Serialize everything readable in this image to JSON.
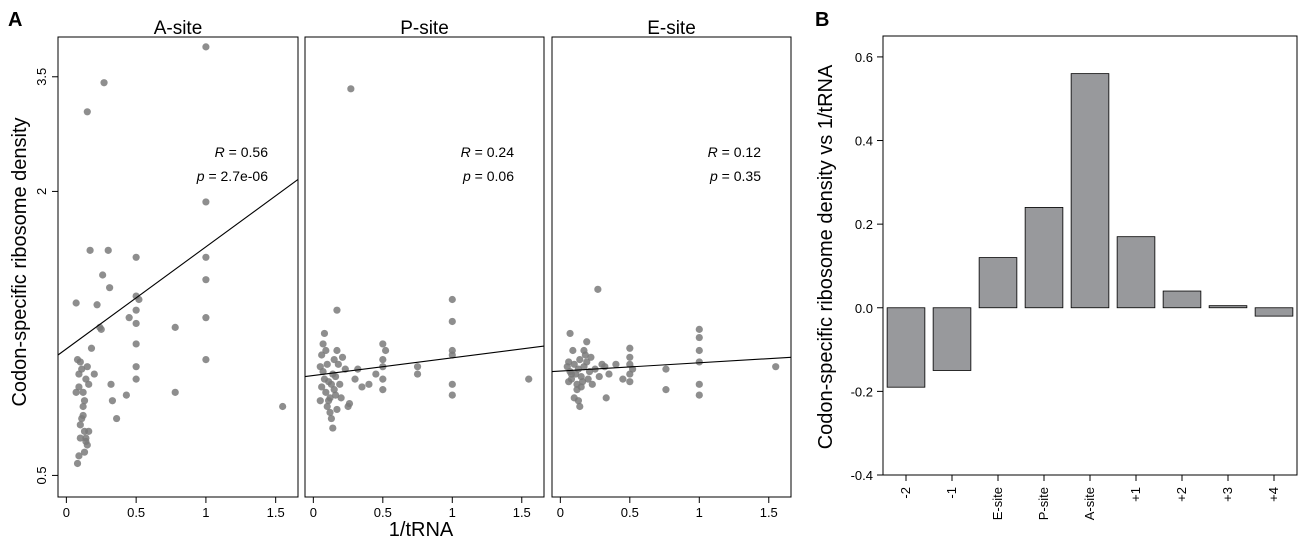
{
  "panel_a": {
    "letter": "A",
    "x_axis_title": "1/tRNA",
    "y_axis_title": "Codon-specific ribosome density"
  },
  "panel_b": {
    "letter": "B",
    "y_axis_title": "Codon-specific ribosome density vs 1/tRNA"
  },
  "chart_data": [
    {
      "type": "scatter",
      "title": "A-site",
      "xlabel": "1/tRNA",
      "ylabel": "Codon-specific ribosome density",
      "y_scale": "log",
      "x_ticks": [
        "0",
        "0.5",
        "1",
        "1.5"
      ],
      "x_tick_values": [
        0,
        0.5,
        1,
        1.5
      ],
      "y_ticks": [
        "0.5",
        "2",
        "3.5"
      ],
      "y_tick_values": [
        0.5,
        2,
        3.5
      ],
      "xlim": [
        -0.06,
        1.66
      ],
      "ylim": [
        0.45,
        4.25
      ],
      "annotations": {
        "R_label": "R",
        "R_value": "= 0.56",
        "p_label": "p",
        "p_value": "= 2.7e-06"
      },
      "fit": [
        [
          -0.06,
          0.9
        ],
        [
          1.66,
          2.12
        ]
      ],
      "points": [
        [
          0.07,
          1.16
        ],
        [
          0.08,
          0.88
        ],
        [
          0.09,
          0.82
        ],
        [
          0.1,
          0.87
        ],
        [
          0.11,
          0.84
        ],
        [
          0.12,
          0.75
        ],
        [
          0.12,
          0.67
        ],
        [
          0.13,
          0.62
        ],
        [
          0.13,
          0.56
        ],
        [
          0.14,
          0.6
        ],
        [
          0.08,
          0.53
        ],
        [
          0.09,
          0.55
        ],
        [
          0.1,
          0.6
        ],
        [
          0.11,
          0.66
        ],
        [
          0.12,
          0.7
        ],
        [
          0.13,
          0.72
        ],
        [
          0.14,
          0.8
        ],
        [
          0.15,
          0.85
        ],
        [
          0.16,
          0.78
        ],
        [
          0.07,
          0.75
        ],
        [
          0.09,
          0.77
        ],
        [
          0.1,
          0.64
        ],
        [
          0.14,
          0.59
        ],
        [
          0.15,
          0.58
        ],
        [
          0.16,
          0.62
        ],
        [
          0.17,
          1.5
        ],
        [
          0.18,
          0.93
        ],
        [
          0.2,
          0.82
        ],
        [
          0.22,
          1.15
        ],
        [
          0.24,
          1.03
        ],
        [
          0.25,
          1.02
        ],
        [
          0.26,
          1.33
        ],
        [
          0.3,
          1.5
        ],
        [
          0.31,
          1.25
        ],
        [
          0.32,
          0.78
        ],
        [
          0.33,
          0.72
        ],
        [
          0.36,
          0.66
        ],
        [
          0.43,
          0.74
        ],
        [
          0.45,
          1.08
        ],
        [
          0.5,
          1.45
        ],
        [
          0.5,
          1.2
        ],
        [
          0.5,
          1.12
        ],
        [
          0.5,
          1.05
        ],
        [
          0.5,
          0.95
        ],
        [
          0.5,
          0.85
        ],
        [
          0.5,
          0.8
        ],
        [
          0.52,
          1.18
        ],
        [
          0.78,
          1.03
        ],
        [
          0.78,
          0.75
        ],
        [
          1.0,
          1.9
        ],
        [
          1.0,
          1.45
        ],
        [
          1.0,
          1.3
        ],
        [
          1.0,
          1.08
        ],
        [
          1.0,
          0.88
        ],
        [
          1.55,
          0.7
        ],
        [
          0.15,
          2.95
        ],
        [
          0.27,
          3.4
        ],
        [
          1.0,
          4.05
        ]
      ]
    },
    {
      "type": "scatter",
      "title": "P-site",
      "xlabel": "1/tRNA",
      "y_scale": "log",
      "x_ticks": [
        "0",
        "0.5",
        "1",
        "1.5"
      ],
      "x_tick_values": [
        0,
        0.5,
        1,
        1.5
      ],
      "xlim": [
        -0.06,
        1.66
      ],
      "ylim": [
        0.45,
        4.25
      ],
      "annotations": {
        "R_label": "R",
        "R_value": "= 0.24",
        "p_label": "p",
        "p_value": "= 0.06"
      },
      "fit": [
        [
          -0.06,
          0.81
        ],
        [
          1.66,
          0.94
        ]
      ],
      "points": [
        [
          0.05,
          0.85
        ],
        [
          0.06,
          0.9
        ],
        [
          0.07,
          0.95
        ],
        [
          0.08,
          0.8
        ],
        [
          0.09,
          0.75
        ],
        [
          0.1,
          0.7
        ],
        [
          0.11,
          0.72
        ],
        [
          0.12,
          0.68
        ],
        [
          0.13,
          0.78
        ],
        [
          0.14,
          0.82
        ],
        [
          0.15,
          0.88
        ],
        [
          0.16,
          0.74
        ],
        [
          0.17,
          0.69
        ],
        [
          0.05,
          0.72
        ],
        [
          0.06,
          0.77
        ],
        [
          0.07,
          0.83
        ],
        [
          0.08,
          1.0
        ],
        [
          0.09,
          0.92
        ],
        [
          0.1,
          0.86
        ],
        [
          0.11,
          0.79
        ],
        [
          0.12,
          0.73
        ],
        [
          0.13,
          0.66
        ],
        [
          0.14,
          0.63
        ],
        [
          0.15,
          0.76
        ],
        [
          0.16,
          0.81
        ],
        [
          0.17,
          0.92
        ],
        [
          0.18,
          0.86
        ],
        [
          0.19,
          0.78
        ],
        [
          0.2,
          0.73
        ],
        [
          0.21,
          0.89
        ],
        [
          0.23,
          0.84
        ],
        [
          0.25,
          0.7
        ],
        [
          0.26,
          0.71
        ],
        [
          0.3,
          0.8
        ],
        [
          0.32,
          0.84
        ],
        [
          0.35,
          0.77
        ],
        [
          0.4,
          0.78
        ],
        [
          0.45,
          0.82
        ],
        [
          0.5,
          0.95
        ],
        [
          0.5,
          0.88
        ],
        [
          0.5,
          0.85
        ],
        [
          0.5,
          0.8
        ],
        [
          0.5,
          0.76
        ],
        [
          0.52,
          0.92
        ],
        [
          0.75,
          0.82
        ],
        [
          0.75,
          0.85
        ],
        [
          1.0,
          1.18
        ],
        [
          1.0,
          1.06
        ],
        [
          1.0,
          0.92
        ],
        [
          1.0,
          0.9
        ],
        [
          1.0,
          0.78
        ],
        [
          1.0,
          0.74
        ],
        [
          1.55,
          0.8
        ],
        [
          0.17,
          1.12
        ],
        [
          0.27,
          3.3
        ]
      ]
    },
    {
      "type": "scatter",
      "title": "E-site",
      "xlabel": "1/tRNA",
      "y_scale": "log",
      "x_ticks": [
        "0",
        "0.5",
        "1",
        "1.5"
      ],
      "x_tick_values": [
        0,
        0.5,
        1,
        1.5
      ],
      "xlim": [
        -0.06,
        1.66
      ],
      "ylim": [
        0.45,
        4.25
      ],
      "annotations": {
        "R_label": "R",
        "R_value": "= 0.12",
        "p_label": "p",
        "p_value": "= 0.35"
      },
      "fit": [
        [
          -0.06,
          0.83
        ],
        [
          1.66,
          0.89
        ]
      ],
      "points": [
        [
          0.05,
          0.85
        ],
        [
          0.06,
          0.87
        ],
        [
          0.07,
          0.83
        ],
        [
          0.08,
          0.8
        ],
        [
          0.09,
          0.92
        ],
        [
          0.1,
          0.86
        ],
        [
          0.11,
          0.82
        ],
        [
          0.12,
          0.78
        ],
        [
          0.13,
          0.84
        ],
        [
          0.14,
          0.88
        ],
        [
          0.15,
          0.81
        ],
        [
          0.16,
          0.79
        ],
        [
          0.17,
          0.85
        ],
        [
          0.18,
          0.9
        ],
        [
          0.19,
          0.87
        ],
        [
          0.2,
          0.8
        ],
        [
          0.21,
          0.83
        ],
        [
          0.22,
          0.89
        ],
        [
          0.25,
          0.84
        ],
        [
          0.28,
          0.81
        ],
        [
          0.3,
          0.86
        ],
        [
          0.32,
          0.85
        ],
        [
          0.35,
          0.82
        ],
        [
          0.4,
          0.86
        ],
        [
          0.45,
          0.8
        ],
        [
          0.5,
          0.93
        ],
        [
          0.5,
          0.89
        ],
        [
          0.5,
          0.86
        ],
        [
          0.5,
          0.82
        ],
        [
          0.5,
          0.79
        ],
        [
          0.52,
          0.84
        ],
        [
          0.06,
          0.79
        ],
        [
          0.08,
          0.82
        ],
        [
          0.1,
          0.73
        ],
        [
          0.12,
          0.76
        ],
        [
          0.13,
          0.72
        ],
        [
          0.15,
          0.77
        ],
        [
          0.17,
          0.92
        ],
        [
          0.19,
          0.96
        ],
        [
          0.23,
          0.78
        ],
        [
          0.27,
          1.24
        ],
        [
          0.76,
          0.84
        ],
        [
          0.76,
          0.76
        ],
        [
          1.0,
          1.02
        ],
        [
          1.0,
          0.98
        ],
        [
          1.0,
          0.92
        ],
        [
          1.0,
          0.87
        ],
        [
          1.0,
          0.78
        ],
        [
          1.0,
          0.74
        ],
        [
          1.55,
          0.85
        ],
        [
          0.07,
          1.0
        ],
        [
          0.14,
          0.7
        ],
        [
          0.33,
          0.73
        ]
      ]
    },
    {
      "type": "bar",
      "ylabel": "Codon-specific ribosome density vs 1/tRNA",
      "categories": [
        "-2",
        "-1",
        "E-site",
        "P-site",
        "A-site",
        "+1",
        "+2",
        "+3",
        "+4"
      ],
      "values": [
        -0.19,
        -0.15,
        0.12,
        0.24,
        0.56,
        0.17,
        0.04,
        0.005,
        -0.02
      ],
      "y_ticks": [
        "-0.4",
        "-0.2",
        "0.0",
        "0.2",
        "0.4",
        "0.6"
      ],
      "y_tick_values": [
        -0.4,
        -0.2,
        0.0,
        0.2,
        0.4,
        0.6
      ],
      "ylim": [
        -0.4,
        0.65
      ]
    }
  ]
}
